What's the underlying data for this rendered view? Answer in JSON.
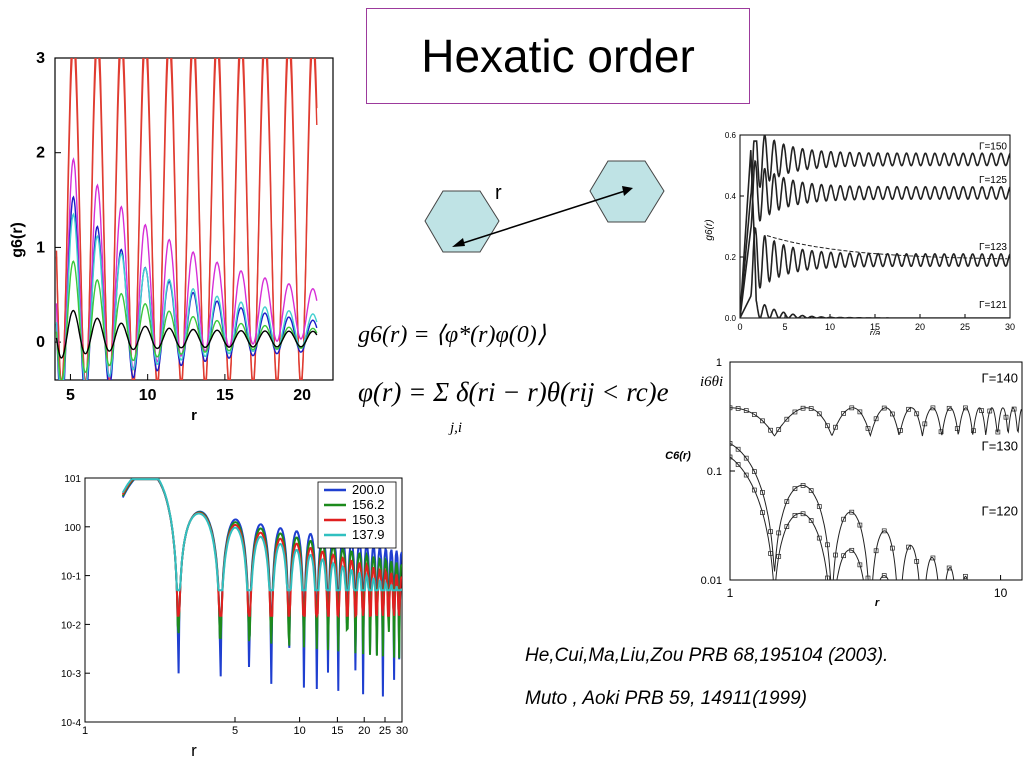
{
  "slide": {
    "title": "Hexatic order",
    "r_label": "r",
    "equation_1": "g6(r) = ⟨φ*(r)φ(0)⟩",
    "equation_2": "φ(r) = Σ δ(ri − r)θ(rij < rc)e",
    "equation_2_sum_index": "j,i",
    "equation_2_exponent": "i6θi",
    "citations": [
      "He,Cui,Ma,Liu,Zou PRB 68,195104 (2003).",
      "Muto , Aoki PRB 59, 14911(1999)"
    ]
  },
  "chart_data": [
    {
      "type": "line",
      "panel": "top-left",
      "ylabel": "g6(r)",
      "xlabel": "r",
      "xlim": [
        4,
        22
      ],
      "ylim": [
        -0.4,
        3.0
      ],
      "xticks": [
        "5",
        "10",
        "15",
        "20"
      ],
      "yticks": [
        "0",
        "1",
        "2",
        "3"
      ],
      "series": [
        {
          "color": "#e03c31",
          "amp_start": 2.9,
          "offset": 1.45,
          "period": 1.55,
          "decay": 0.0
        },
        {
          "color": "#e03c31",
          "amp_start": 2.6,
          "offset": 1.35,
          "period": 1.55,
          "decay": 0.0
        },
        {
          "color": "#d62fd6",
          "amp_start": 2.4,
          "offset": 0.2,
          "period": 1.55,
          "decay": 0.12
        },
        {
          "color": "#1c1cc8",
          "amp_start": 2.2,
          "offset": 0.0,
          "period": 1.55,
          "decay": 0.16
        },
        {
          "color": "#42d0d0",
          "amp_start": 1.8,
          "offset": 0.05,
          "period": 1.55,
          "decay": 0.14
        },
        {
          "color": "#3cc83c",
          "amp_start": 1.2,
          "offset": 0.0,
          "period": 1.55,
          "decay": 0.2
        },
        {
          "color": "#000000",
          "amp_start": 0.4,
          "offset": 0.0,
          "period": 1.55,
          "decay": 0.3
        }
      ]
    },
    {
      "type": "line",
      "panel": "bottom-left",
      "xlabel": "r",
      "xscale": "log",
      "yscale": "log",
      "xlim": [
        1,
        30
      ],
      "ylim": [
        0.0001,
        10
      ],
      "xticks": [
        "1",
        "5",
        "10",
        "15",
        "20",
        "25",
        "30"
      ],
      "yticks": [
        "10^1",
        "10^0",
        "10^-1",
        "10^-2",
        "10^-3",
        "10^-4"
      ],
      "legend_position": "top-right",
      "series": [
        {
          "name": "200.0",
          "color": "#1f3fd0"
        },
        {
          "name": "156.2",
          "color": "#1c8a1c"
        },
        {
          "name": "150.3",
          "color": "#e02020"
        },
        {
          "name": "137.9",
          "color": "#30c0c0"
        }
      ]
    },
    {
      "type": "line",
      "panel": "top-right",
      "ylabel": "g6(r)",
      "xlabel": "r/a",
      "xlim": [
        0,
        30
      ],
      "ylim": [
        0,
        0.6
      ],
      "xticks": [
        "0",
        "5",
        "10",
        "15",
        "20",
        "25",
        "30"
      ],
      "yticks": [
        "0.0",
        "0.2",
        "0.4",
        "0.6"
      ],
      "series": [
        {
          "name": "Γ=150",
          "level": 0.52
        },
        {
          "name": "Γ=125",
          "level": 0.41
        },
        {
          "name": "Γ=123",
          "level": 0.19
        },
        {
          "name": "Γ=121",
          "level": 0.0
        }
      ]
    },
    {
      "type": "line",
      "panel": "bottom-right",
      "ylabel": "C6(r)",
      "xlabel": "r",
      "xscale": "log",
      "yscale": "log",
      "xlim": [
        1,
        12
      ],
      "ylim": [
        0.01,
        1
      ],
      "xticks": [
        "1",
        "10"
      ],
      "yticks": [
        "1",
        "0.1",
        "0.01"
      ],
      "series": [
        {
          "name": "Γ=140"
        },
        {
          "name": "Γ=130"
        },
        {
          "name": "Γ=120"
        }
      ]
    }
  ]
}
